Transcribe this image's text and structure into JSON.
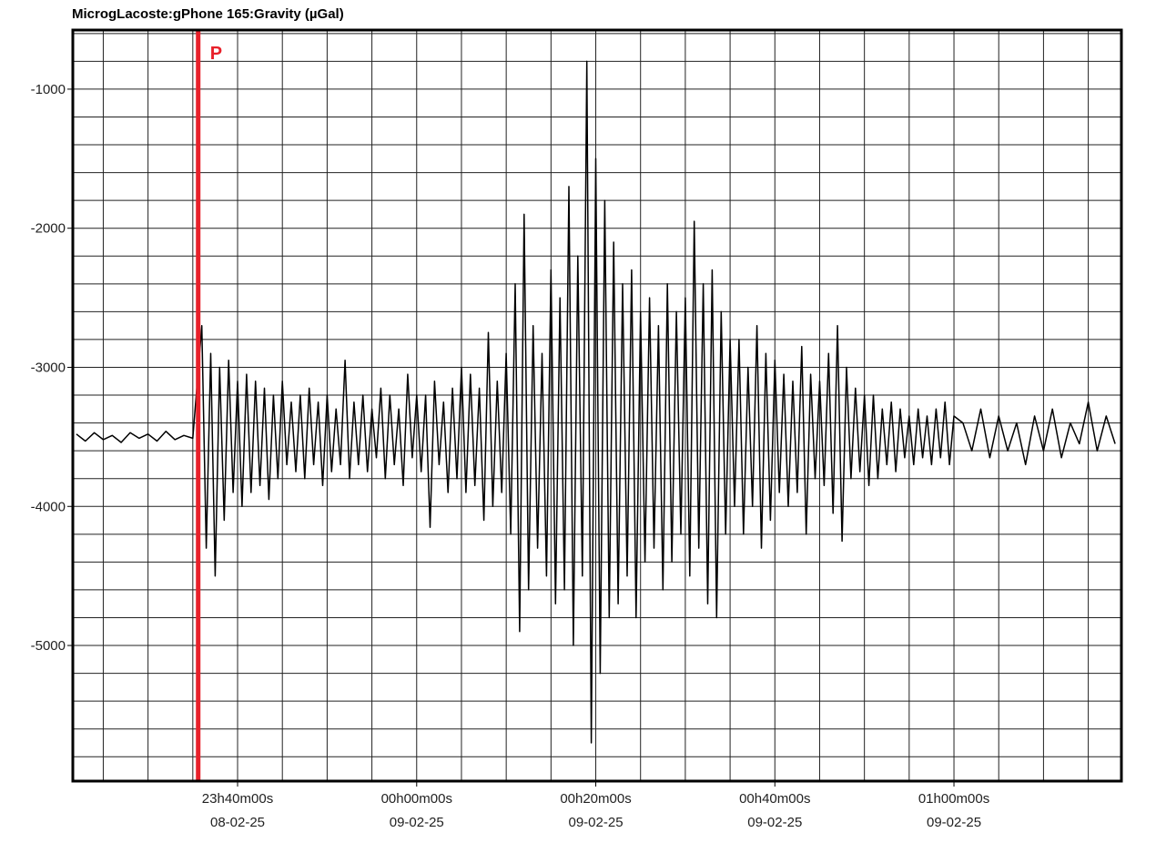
{
  "chart_data": {
    "type": "line",
    "title": "MicrogLacoste:gPhone 165:Gravity (µGal)",
    "x": [
      1402,
      1403,
      1404,
      1405,
      1406,
      1407,
      1408,
      1409,
      1410,
      1411,
      1412,
      1413,
      1414,
      1415,
      1416,
      1416.5,
      1417,
      1417.5,
      1418,
      1418.5,
      1419,
      1419.5,
      1420,
      1420.5,
      1421,
      1421.5,
      1422,
      1422.5,
      1423,
      1423.5,
      1424,
      1424.5,
      1425,
      1425.5,
      1426,
      1426.5,
      1427,
      1427.5,
      1428,
      1428.5,
      1429,
      1429.5,
      1430,
      1430.5,
      1431,
      1431.5,
      1432,
      1432.5,
      1433,
      1433.5,
      1434,
      1434.5,
      1435,
      1435.5,
      1436,
      1436.5,
      1437,
      1437.5,
      1438,
      1438.5,
      1439,
      1439.5,
      1440,
      1440.5,
      1441,
      1441.5,
      1442,
      1442.5,
      1443,
      1443.5,
      1444,
      1444.5,
      1445,
      1445.5,
      1446,
      1446.5,
      1447,
      1447.5,
      1448,
      1448.5,
      1449,
      1449.5,
      1450,
      1450.5,
      1451,
      1451.5,
      1452,
      1452.5,
      1453,
      1453.5,
      1454,
      1454.5,
      1455,
      1455.5,
      1456,
      1456.5,
      1457,
      1457.5,
      1458,
      1458.5,
      1459,
      1459.5,
      1460,
      1460.5,
      1461,
      1461.5,
      1462,
      1462.5,
      1463,
      1463.5,
      1464,
      1464.5,
      1465,
      1465.5,
      1466,
      1466.5,
      1467,
      1467.5,
      1468,
      1468.5,
      1469,
      1469.5,
      1470,
      1470.5,
      1471,
      1471.5,
      1472,
      1472.5,
      1473,
      1473.5,
      1474,
      1474.5,
      1475,
      1475.5,
      1476,
      1476.5,
      1477,
      1477.5,
      1478,
      1478.5,
      1479,
      1479.5,
      1480,
      1480.5,
      1481,
      1481.5,
      1482,
      1482.5,
      1483,
      1483.5,
      1484,
      1484.5,
      1485,
      1485.5,
      1486,
      1486.5,
      1487,
      1487.5,
      1488,
      1488.5,
      1489,
      1489.5,
      1490,
      1490.5,
      1491,
      1491.5,
      1492,
      1492.5,
      1493,
      1493.5,
      1494,
      1494.5,
      1495,
      1495.5,
      1496,
      1496.5,
      1497,
      1497.5,
      1498,
      1498.5,
      1499,
      1499.5,
      1500,
      1501,
      1502,
      1503,
      1504,
      1505,
      1506,
      1507,
      1508,
      1509,
      1510,
      1511,
      1512,
      1513,
      1514,
      1515,
      1516,
      1517,
      1518
    ],
    "series": [
      {
        "color": "#000000",
        "values": [
          -3480,
          -3530,
          -3470,
          -3520,
          -3490,
          -3540,
          -3470,
          -3510,
          -3480,
          -3530,
          -3460,
          -3520,
          -3490,
          -3510,
          -2700,
          -4300,
          -2900,
          -4500,
          -3000,
          -4100,
          -2950,
          -3900,
          -3100,
          -4000,
          -3050,
          -3900,
          -3100,
          -3850,
          -3150,
          -3950,
          -3200,
          -3800,
          -3100,
          -3700,
          -3250,
          -3750,
          -3200,
          -3800,
          -3150,
          -3700,
          -3250,
          -3850,
          -3200,
          -3750,
          -3300,
          -3700,
          -2950,
          -3800,
          -3250,
          -3700,
          -3200,
          -3750,
          -3300,
          -3650,
          -3150,
          -3800,
          -3200,
          -3700,
          -3300,
          -3850,
          -3050,
          -3650,
          -3200,
          -3750,
          -3200,
          -4150,
          -3100,
          -3700,
          -3250,
          -3900,
          -3150,
          -3800,
          -3000,
          -3900,
          -3050,
          -3850,
          -3150,
          -4100,
          -2750,
          -4000,
          -3100,
          -3900,
          -2900,
          -4200,
          -2400,
          -4900,
          -1900,
          -4600,
          -2700,
          -4300,
          -2900,
          -4500,
          -2300,
          -4700,
          -2500,
          -4600,
          -1700,
          -5000,
          -2200,
          -4500,
          -800,
          -5700,
          -1500,
          -5200,
          -1800,
          -4800,
          -2100,
          -4700,
          -2400,
          -4500,
          -2300,
          -4800,
          -2600,
          -4400,
          -2500,
          -4300,
          -2700,
          -4600,
          -2400,
          -4400,
          -2600,
          -4200,
          -2500,
          -4500,
          -1950,
          -4300,
          -2400,
          -4700,
          -2300,
          -4800,
          -2600,
          -4200,
          -2800,
          -4000,
          -2800,
          -4200,
          -3000,
          -4000,
          -2700,
          -4300,
          -2900,
          -4100,
          -2950,
          -3900,
          -3050,
          -4000,
          -3100,
          -3900,
          -2850,
          -4200,
          -3050,
          -3800,
          -3100,
          -3850,
          -2900,
          -4050,
          -2700,
          -4250,
          -3000,
          -3800,
          -3150,
          -3750,
          -3200,
          -3850,
          -3200,
          -3800,
          -3300,
          -3700,
          -3250,
          -3750,
          -3300,
          -3650,
          -3350,
          -3700,
          -3300,
          -3650,
          -3350,
          -3700,
          -3300,
          -3650,
          -3250,
          -3700,
          -3350,
          -3400,
          -3600,
          -3300,
          -3650,
          -3350,
          -3600,
          -3400,
          -3700,
          -3350,
          -3600,
          -3300,
          -3650,
          -3400,
          -3550,
          -3250,
          -3600,
          -3350,
          -3550
        ]
      }
    ],
    "xlim": [
      1401.6,
      1518.7
    ],
    "ylim": [
      -5975,
      -575
    ],
    "xticks": [
      {
        "value": 1420,
        "label": "23h40m00s",
        "date": "08-02-25"
      },
      {
        "value": 1440,
        "label": "00h00m00s",
        "date": "09-02-25"
      },
      {
        "value": 1460,
        "label": "00h20m00s",
        "date": "09-02-25"
      },
      {
        "value": 1480,
        "label": "00h40m00s",
        "date": "09-02-25"
      },
      {
        "value": 1500,
        "label": "01h00m00s",
        "date": "09-02-25"
      }
    ],
    "yticks": [
      -1000,
      -2000,
      -3000,
      -4000,
      -5000
    ],
    "xgrid_step": 5,
    "ygrid_step": 200,
    "grid": true,
    "annotations": [
      {
        "x": 1415.6,
        "label": "P",
        "color": "#e8202a"
      }
    ]
  }
}
